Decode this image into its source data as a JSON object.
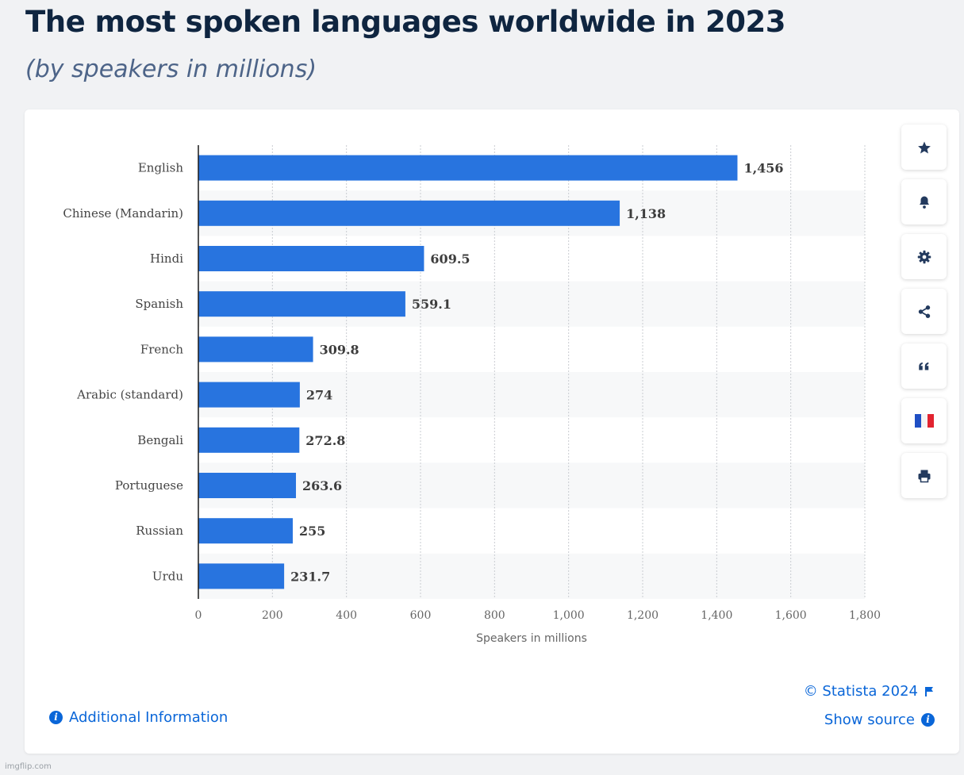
{
  "header": {
    "title": "The most spoken languages worldwide in 2023",
    "subtitle": "(by speakers in millions)"
  },
  "colors": {
    "bar": "#2874df",
    "title": "#0f2540",
    "link": "#0a66d8"
  },
  "chart_data": {
    "type": "bar",
    "orientation": "horizontal",
    "categories": [
      "English",
      "Chinese (Mandarin)",
      "Hindi",
      "Spanish",
      "French",
      "Arabic (standard)",
      "Bengali",
      "Portuguese",
      "Russian",
      "Urdu"
    ],
    "values": [
      1456,
      1138,
      609.5,
      559.1,
      309.8,
      274,
      272.8,
      263.6,
      255,
      231.7
    ],
    "value_labels": [
      "1,456",
      "1,138",
      "609.5",
      "559.1",
      "309.8",
      "274",
      "272.8",
      "263.6",
      "255",
      "231.7"
    ],
    "xlabel": "Speakers in millions",
    "xlim": [
      0,
      1800
    ],
    "xticks": [
      0,
      200,
      400,
      600,
      800,
      1000,
      1200,
      1400,
      1600,
      1800
    ],
    "xtick_labels": [
      "0",
      "200",
      "400",
      "600",
      "800",
      "1,000",
      "1,200",
      "1,400",
      "1,600",
      "1,800"
    ],
    "grid": true
  },
  "side_tools": [
    {
      "name": "favorite-star-button",
      "icon": "star-icon"
    },
    {
      "name": "notification-bell-button",
      "icon": "bell-icon"
    },
    {
      "name": "settings-button",
      "icon": "gear-icon"
    },
    {
      "name": "share-button",
      "icon": "share-icon"
    },
    {
      "name": "cite-button",
      "icon": "quote-icon"
    },
    {
      "name": "language-flag-button",
      "icon": "french-flag-icon"
    },
    {
      "name": "print-button",
      "icon": "printer-icon"
    }
  ],
  "footer": {
    "additional_info": "Additional Information",
    "copyright": "© Statista 2024",
    "show_source": "Show source"
  },
  "watermark": "imgflip.com"
}
